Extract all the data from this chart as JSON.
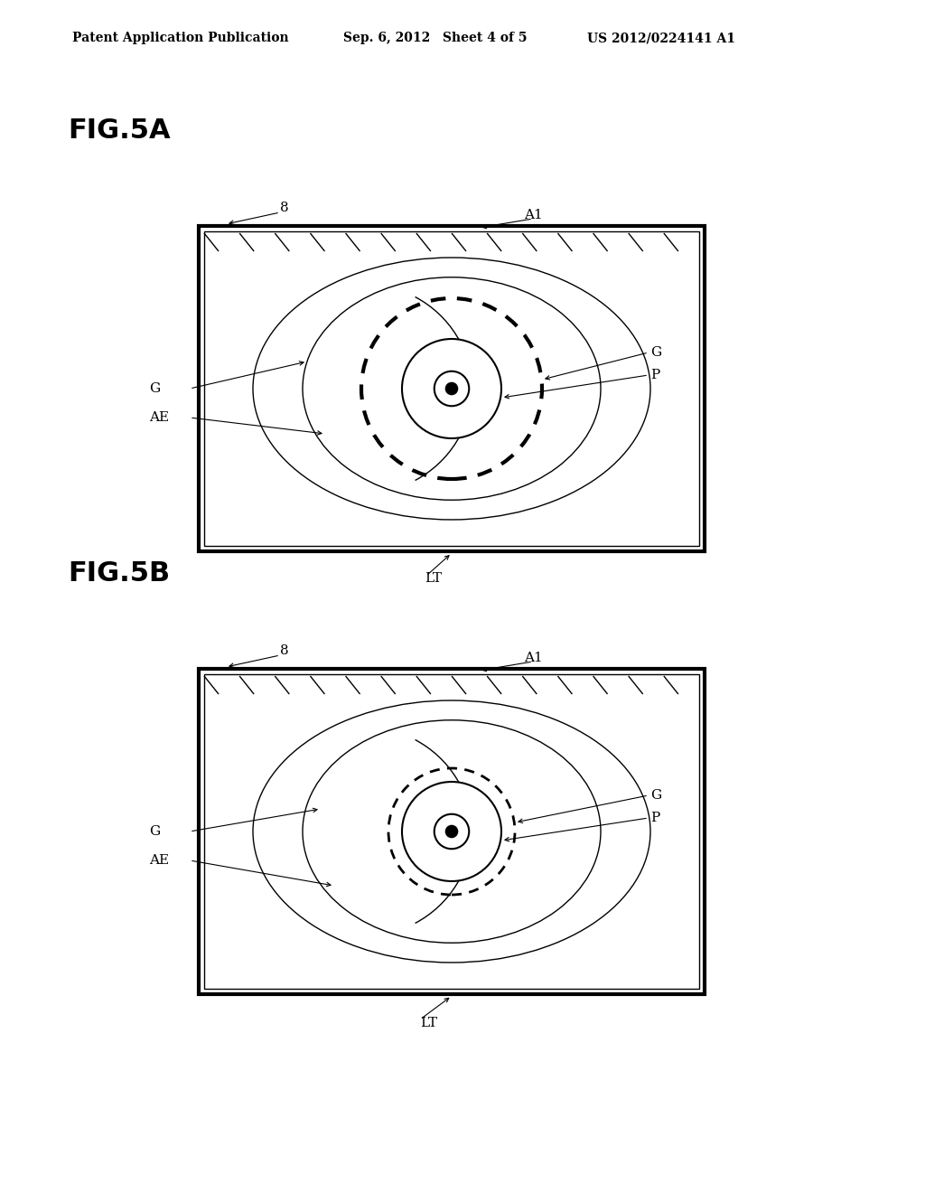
{
  "bg_color": "#ffffff",
  "header_text": "Patent Application Publication",
  "header_date": "Sep. 6, 2012",
  "header_sheet": "Sheet 4 of 5",
  "header_patent": "US 2012/0224141 A1",
  "fig5a_title": "FIG.5A",
  "fig5b_title": "FIG.5B",
  "fig_color": "#000000",
  "line_color": "#000000",
  "box_fill": "#f0f0f0",
  "inner_fill": "#e8e8e8"
}
